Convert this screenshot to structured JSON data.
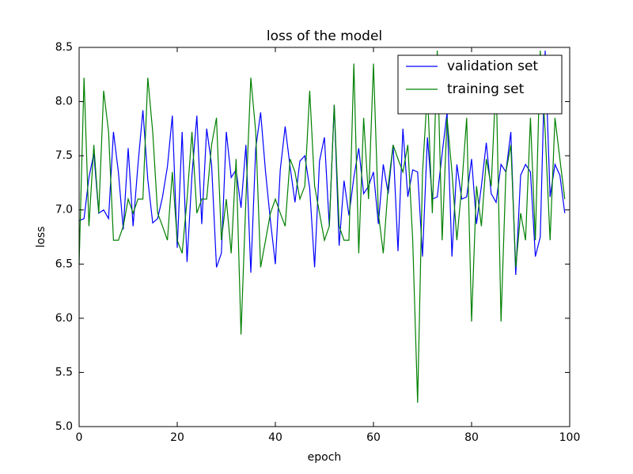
{
  "chart_data": {
    "type": "line",
    "title": "loss of the model",
    "x_label": "epoch",
    "y_label": "loss",
    "x": [
      0,
      1,
      2,
      3,
      4,
      5,
      6,
      7,
      8,
      9,
      10,
      11,
      12,
      13,
      14,
      15,
      16,
      17,
      18,
      19,
      20,
      21,
      22,
      23,
      24,
      25,
      26,
      27,
      28,
      29,
      30,
      31,
      32,
      33,
      34,
      35,
      36,
      37,
      38,
      39,
      40,
      41,
      42,
      43,
      44,
      45,
      46,
      47,
      48,
      49,
      50,
      51,
      52,
      53,
      54,
      55,
      56,
      57,
      58,
      59,
      60,
      61,
      62,
      63,
      64,
      65,
      66,
      67,
      68,
      69,
      70,
      71,
      72,
      73,
      74,
      75,
      76,
      77,
      78,
      79,
      80,
      81,
      82,
      83,
      84,
      85,
      86,
      87,
      88,
      89,
      90,
      91,
      92,
      93,
      94,
      95,
      96,
      97,
      98,
      99
    ],
    "series": [
      {
        "name": "validation set",
        "color": "#0000ff",
        "values": [
          6.9,
          6.92,
          7.3,
          7.52,
          6.97,
          7.0,
          6.92,
          7.72,
          7.35,
          6.82,
          7.57,
          6.85,
          7.42,
          7.92,
          7.28,
          6.88,
          6.92,
          7.12,
          7.4,
          7.87,
          6.65,
          7.72,
          6.52,
          7.32,
          7.87,
          6.87,
          7.75,
          7.42,
          6.47,
          6.6,
          7.72,
          7.3,
          7.37,
          7.02,
          7.6,
          6.42,
          7.57,
          7.9,
          7.35,
          6.9,
          6.5,
          7.37,
          7.77,
          7.4,
          7.07,
          7.45,
          7.5,
          7.2,
          6.47,
          7.45,
          7.67,
          6.85,
          7.97,
          6.67,
          7.27,
          6.95,
          7.3,
          7.57,
          7.15,
          7.22,
          7.35,
          6.87,
          7.42,
          7.15,
          7.6,
          6.62,
          7.75,
          7.12,
          7.37,
          7.35,
          6.57,
          7.67,
          7.1,
          7.12,
          7.52,
          7.9,
          6.57,
          7.42,
          7.1,
          7.12,
          7.47,
          6.87,
          7.22,
          7.62,
          7.15,
          7.07,
          7.42,
          7.35,
          7.72,
          6.4,
          7.32,
          7.42,
          7.35,
          6.57,
          6.75,
          8.47,
          7.12,
          7.42,
          7.32,
          6.97
        ]
      },
      {
        "name": "training set",
        "color": "#008000",
        "values": [
          6.5,
          8.22,
          6.85,
          7.6,
          6.97,
          8.1,
          7.72,
          6.72,
          6.72,
          6.85,
          7.1,
          6.97,
          7.1,
          7.1,
          8.22,
          7.72,
          6.97,
          6.85,
          6.72,
          7.35,
          6.72,
          6.6,
          7.1,
          7.72,
          6.97,
          7.1,
          7.1,
          7.6,
          7.85,
          6.72,
          7.1,
          6.6,
          7.47,
          5.85,
          7.1,
          8.22,
          7.72,
          6.47,
          6.72,
          6.97,
          7.1,
          6.97,
          6.85,
          7.47,
          7.35,
          7.1,
          7.22,
          8.1,
          7.22,
          6.97,
          6.72,
          6.85,
          7.97,
          6.85,
          6.72,
          6.72,
          8.35,
          6.6,
          7.85,
          7.1,
          8.35,
          6.97,
          6.6,
          7.22,
          7.6,
          7.47,
          7.35,
          7.6,
          6.72,
          5.22,
          7.35,
          8.1,
          6.97,
          8.47,
          6.72,
          7.85,
          7.35,
          6.72,
          7.22,
          7.85,
          5.97,
          7.22,
          6.85,
          7.47,
          7.22,
          8.22,
          5.97,
          7.35,
          7.6,
          6.47,
          6.97,
          6.72,
          7.85,
          6.72,
          8.47,
          7.72,
          6.72,
          7.85,
          7.47,
          7.1
        ]
      }
    ],
    "xlim": [
      0,
      100
    ],
    "ylim": [
      5.0,
      8.5
    ],
    "xticks": [
      0,
      20,
      40,
      60,
      80,
      100
    ],
    "yticks": [
      {
        "value": 5,
        "label": "5.0"
      },
      {
        "value": 5.5,
        "label": "5.5"
      },
      {
        "value": 6,
        "label": "6.0"
      },
      {
        "value": 6.5,
        "label": "6.5"
      },
      {
        "value": 7,
        "label": "7.0"
      },
      {
        "value": 7.5,
        "label": "7.5"
      },
      {
        "value": 8,
        "label": "8.0"
      },
      {
        "value": 8.5,
        "label": "8.5"
      }
    ],
    "legend": "upper right",
    "grid": false
  }
}
